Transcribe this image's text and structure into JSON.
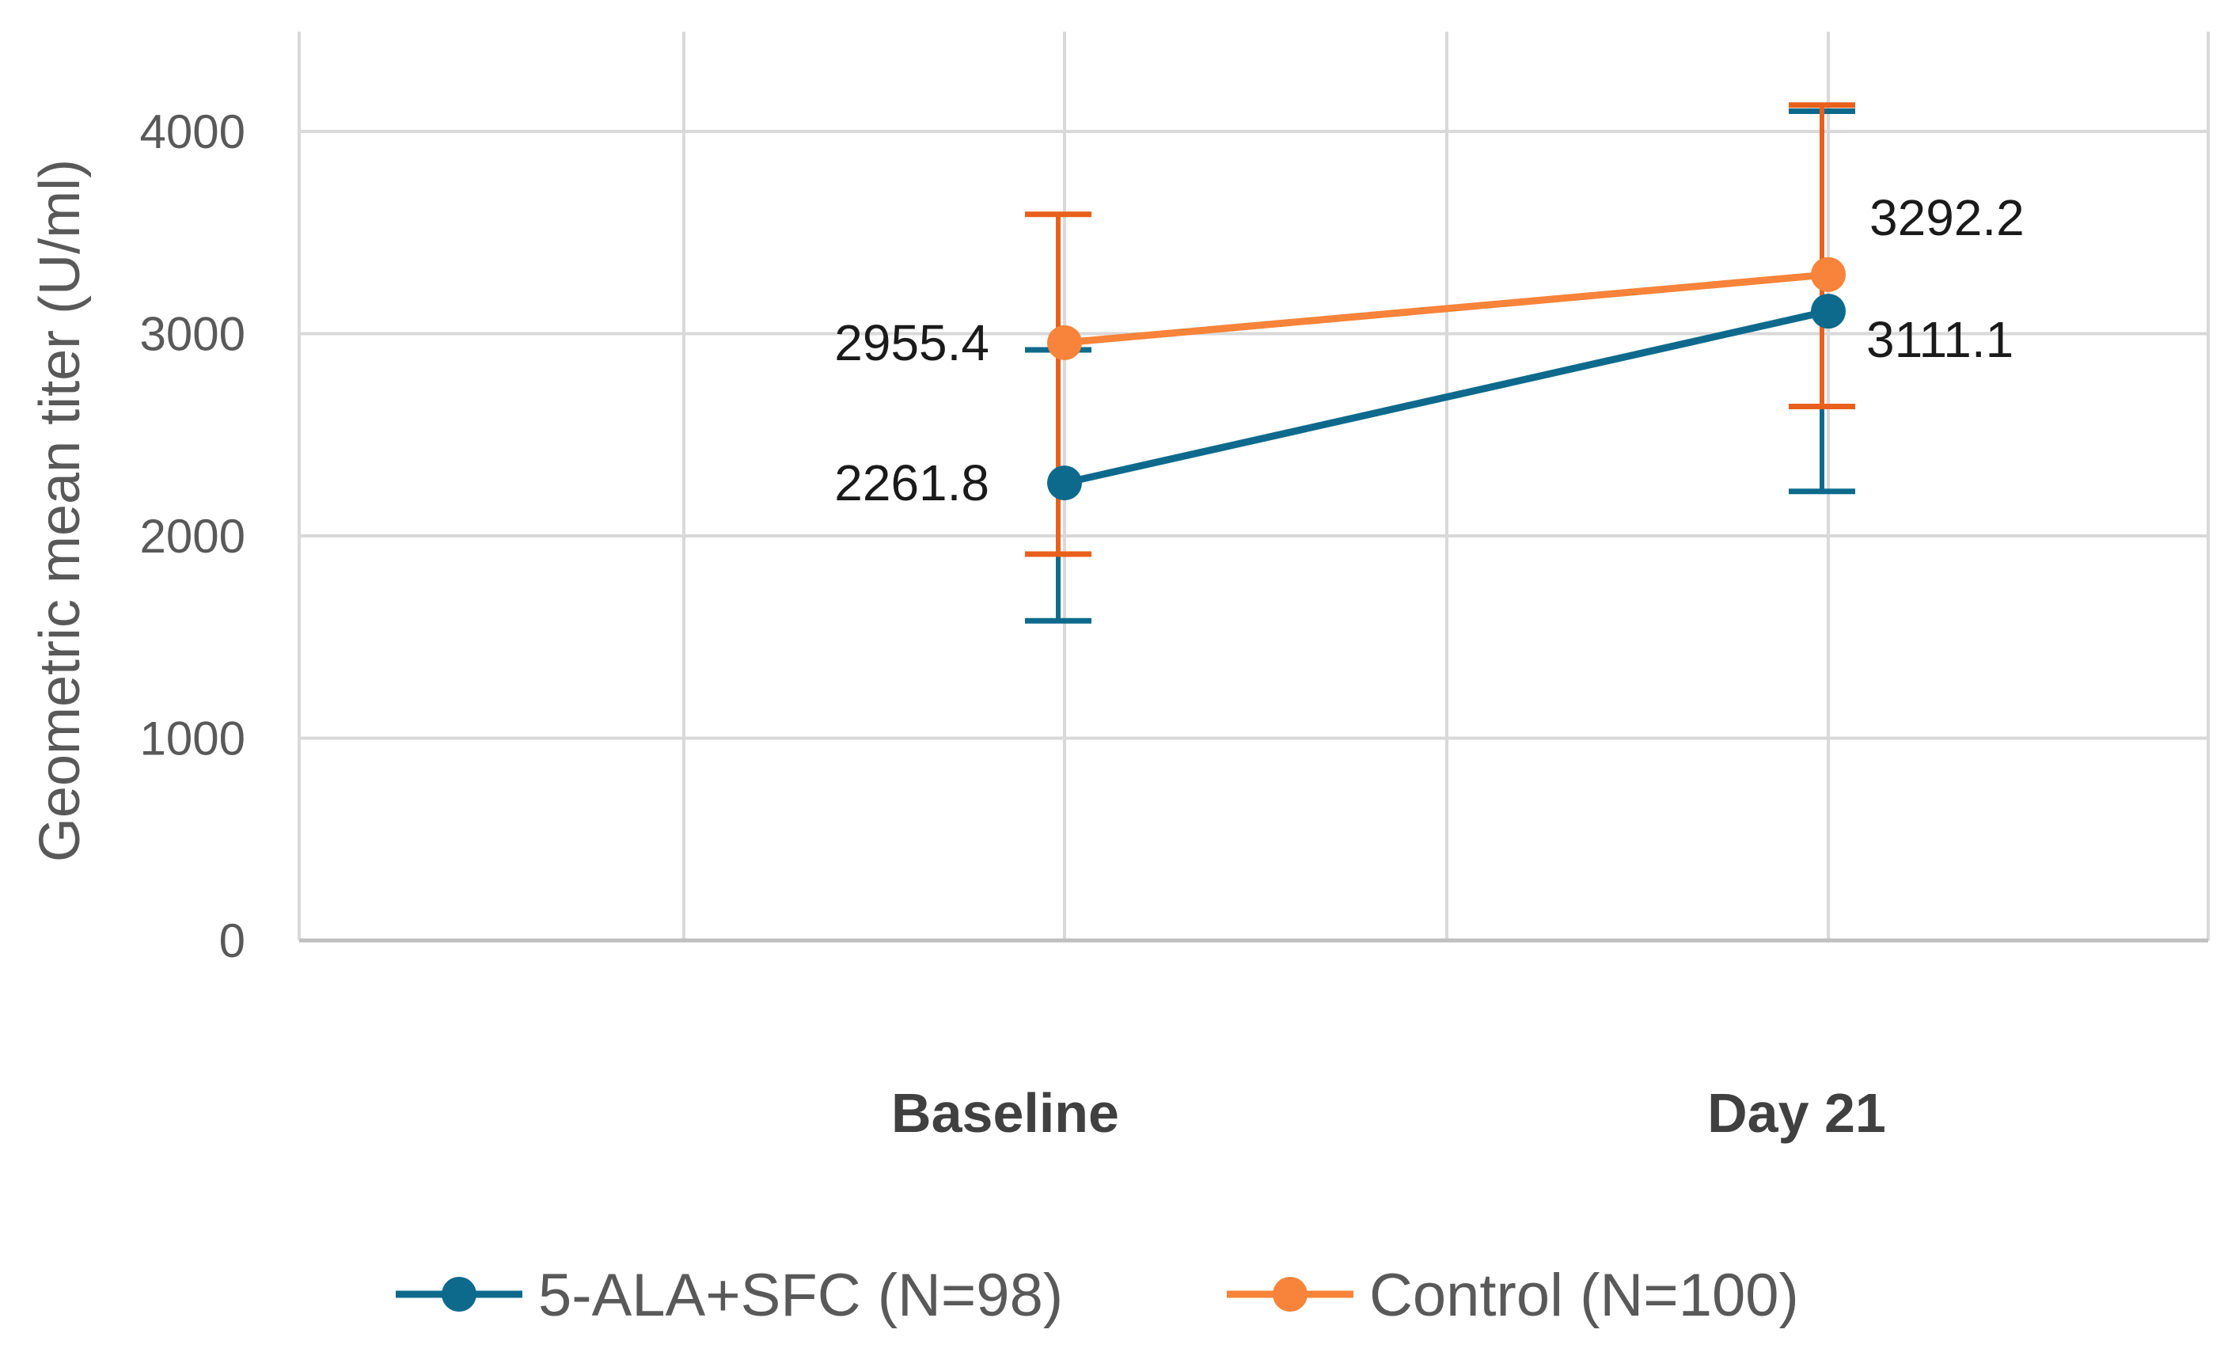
{
  "chart_data": {
    "type": "line",
    "title": "",
    "xlabel": "",
    "ylabel": "Geometric mean titer (U/ml)",
    "ylim": [
      0,
      4500
    ],
    "yticks": [
      0,
      1000,
      2000,
      3000,
      4000
    ],
    "ytick_labels": [
      "0",
      "1000",
      "2000",
      "3000",
      "4000"
    ],
    "categories": [
      "Baseline",
      "Day 21"
    ],
    "grid": true,
    "legend_position": "bottom",
    "series": [
      {
        "name": "5-ALA+SFC (N=98)",
        "color": "#0e6a8c",
        "values": [
          2261.8,
          3111.1
        ],
        "labels": [
          "2261.8",
          "3111.1"
        ],
        "error_low": [
          1580,
          2220
        ],
        "error_high": [
          2920,
          4100
        ]
      },
      {
        "name": "Control (N=100)",
        "color": "#f7843a",
        "error_color": "#e8601c",
        "values": [
          2955.4,
          3292.2
        ],
        "labels": [
          "2955.4",
          "3292.2"
        ],
        "error_low": [
          1910,
          2640
        ],
        "error_high": [
          3590,
          4130
        ]
      }
    ]
  }
}
